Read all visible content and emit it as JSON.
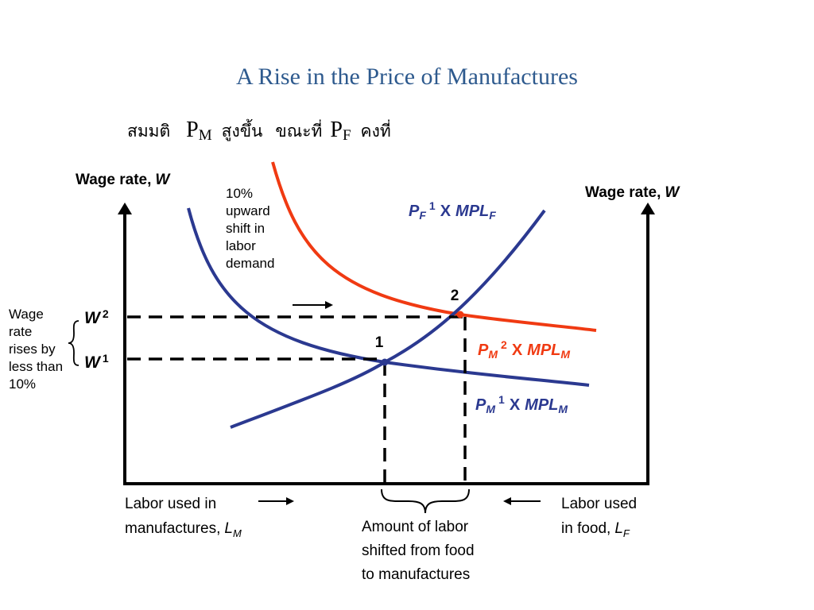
{
  "slide": {
    "title": "A Rise in the Price of Manufactures",
    "assumption": {
      "prefix": "สมมติ",
      "pm_symbol": "P",
      "pm_sub": "M",
      "pm_text": "สูงขึ้น",
      "middle": "ขณะที่",
      "pf_symbol": "P",
      "pf_sub": "F",
      "pf_text": "คงที่"
    }
  },
  "axes": {
    "left_label": "Wage rate,",
    "left_var": "W",
    "right_label": "Wage rate,",
    "right_var": "W"
  },
  "annotations": {
    "shift_note": [
      "10%",
      "upward",
      "shift in",
      "labor",
      "demand"
    ],
    "wage_note": [
      "Wage",
      "rate",
      "rises by",
      "less than",
      "10%"
    ],
    "w2": "W",
    "w2_sup": "2",
    "w1": "W",
    "w1_sup": "1",
    "point1": "1",
    "point2": "2"
  },
  "curves": {
    "pf": {
      "p": "P",
      "sub": "F",
      "sup": "1",
      "x": "X",
      "mpl": "MPL",
      "mpl_sub": "F"
    },
    "pm2": {
      "p": "P",
      "sub": "M",
      "sup": "2",
      "x": "X",
      "mpl": "MPL",
      "mpl_sub": "M"
    },
    "pm1": {
      "p": "P",
      "sub": "M",
      "sup": "1",
      "x": "X",
      "mpl": "MPL",
      "mpl_sub": "M"
    }
  },
  "bottom": {
    "lm_line1": "Labor used in",
    "lm_line2": "manufactures,",
    "lm_var": "L",
    "lm_sub": "M",
    "lf_line1": "Labor used",
    "lf_line2": "in food,",
    "lf_var": "L",
    "lf_sub": "F",
    "shift_line1": "Amount of labor",
    "shift_line2": "shifted from food",
    "shift_line3": "to manufactures"
  },
  "colors": {
    "title": "#2e5a8e",
    "blue": "#2b3990",
    "red": "#f03a12",
    "black": "#000000"
  }
}
